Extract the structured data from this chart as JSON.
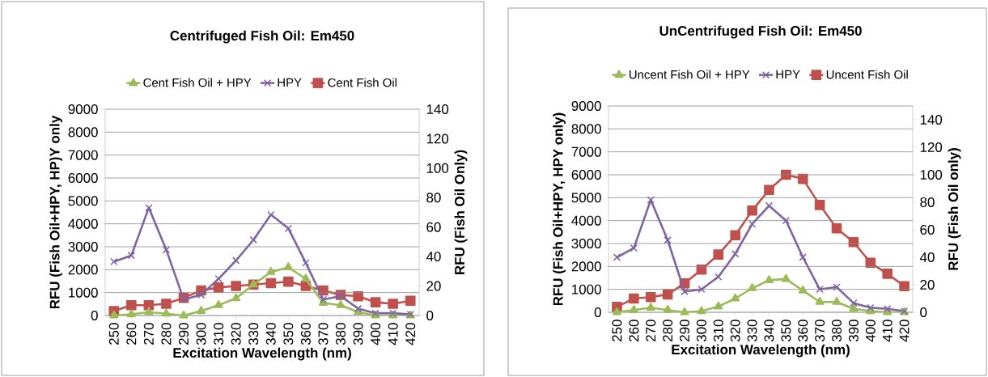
{
  "chart_data": [
    {
      "type": "line",
      "title": "Centrifuged Fish Oil: Em450",
      "xlabel": "Excitation Wavelength (nm)",
      "ylabel": "RFU (Fish Oil+HPY, HP)Y only",
      "y2label": "RFU (Fish Oil Only)",
      "categories": [
        "250",
        "260",
        "270",
        "280",
        "290",
        "300",
        "310",
        "320",
        "330",
        "340",
        "350",
        "360",
        "370",
        "380",
        "390",
        "400",
        "410",
        "420"
      ],
      "ylim": [
        0,
        9000
      ],
      "yticks": [
        0,
        1000,
        2000,
        3000,
        4000,
        5000,
        6000,
        7000,
        8000,
        9000
      ],
      "y2lim": [
        0,
        140
      ],
      "y2ticks": [
        0,
        20,
        40,
        60,
        80,
        100,
        120,
        140
      ],
      "grid": "y",
      "legend": "top",
      "series": [
        {
          "name": "Cent Fish Oil + HPY",
          "color": "#9bbb59",
          "marker": "triangle",
          "values": [
            0,
            50,
            150,
            80,
            0,
            200,
            450,
            750,
            1350,
            1900,
            2100,
            1600,
            550,
            450,
            150,
            0,
            0,
            0
          ]
        },
        {
          "name": "HPY",
          "color": "#8064a2",
          "marker": "cross",
          "values": [
            2350,
            2620,
            4700,
            2870,
            700,
            900,
            1600,
            2400,
            3300,
            4400,
            3800,
            2300,
            700,
            850,
            300,
            100,
            100,
            50
          ]
        },
        {
          "name": "Cent Fish Oil",
          "color": "#c0504d",
          "marker": "square",
          "axis": "y2",
          "values": [
            3,
            7,
            7,
            8,
            12,
            17,
            19,
            20,
            21,
            22,
            23,
            20,
            17,
            14,
            13,
            9,
            8,
            10
          ]
        }
      ]
    },
    {
      "type": "line",
      "title": "UnCentrifuged Fish Oil: Em450",
      "xlabel": "Excitation Wavelength (nm)",
      "ylabel": "RFU (Fish Oil+HPY, HPY only)",
      "y2label": "RFU (Fish Oil only)",
      "categories": [
        "250",
        "260",
        "270",
        "280",
        "290",
        "300",
        "310",
        "320",
        "330",
        "340",
        "350",
        "360",
        "370",
        "380",
        "390",
        "400",
        "410",
        "420"
      ],
      "ylim": [
        0,
        9000
      ],
      "yticks": [
        0,
        1000,
        2000,
        3000,
        4000,
        5000,
        6000,
        7000,
        8000,
        9000
      ],
      "y2lim": [
        0,
        150
      ],
      "y2ticks": [
        0,
        20,
        40,
        60,
        80,
        100,
        120,
        140
      ],
      "grid": "y",
      "legend": "top",
      "series": [
        {
          "name": "Uncent Fish Oil + HPY",
          "color": "#9bbb59",
          "marker": "triangle",
          "values": [
            0,
            100,
            200,
            100,
            0,
            50,
            250,
            600,
            1050,
            1400,
            1450,
            950,
            450,
            450,
            150,
            50,
            0,
            0
          ]
        },
        {
          "name": "HPY",
          "color": "#8064a2",
          "marker": "cross",
          "values": [
            2400,
            2800,
            4900,
            3150,
            900,
            1000,
            1550,
            2550,
            3850,
            4650,
            4000,
            2400,
            1000,
            1100,
            400,
            200,
            150,
            50
          ]
        },
        {
          "name": "Uncent Fish Oil",
          "color": "#c0504d",
          "marker": "square",
          "axis": "y2",
          "values": [
            4,
            10,
            11,
            13,
            21,
            31,
            42,
            56,
            74,
            89,
            100,
            97,
            78,
            61,
            51,
            36,
            28,
            19
          ]
        }
      ]
    }
  ]
}
